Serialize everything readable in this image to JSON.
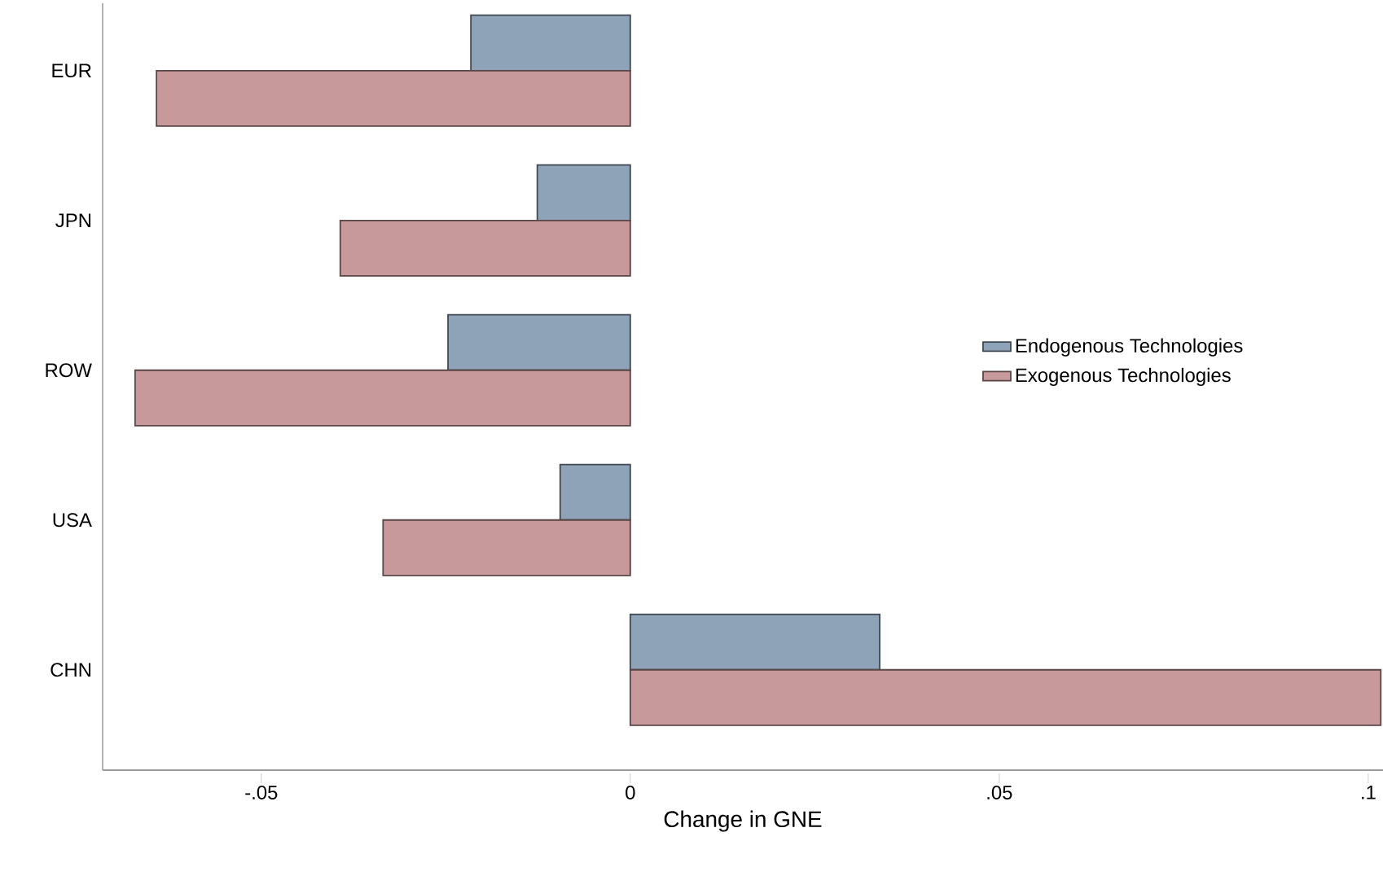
{
  "chart_data": {
    "type": "bar",
    "orientation": "horizontal",
    "xlabel": "Change in GNE",
    "categories": [
      "EUR",
      "JPN",
      "ROW",
      "USA",
      "CHN"
    ],
    "series": [
      {
        "name": "Endogenous Technologies",
        "color": "#8ea3b8",
        "values": [
          -0.0216,
          -0.0126,
          -0.0247,
          -0.0095,
          0.0338
        ]
      },
      {
        "name": "Exogenous Technologies",
        "color": "#c8999b",
        "values": [
          -0.0642,
          -0.0393,
          -0.0671,
          -0.0335,
          0.1017
        ]
      }
    ],
    "xlim": [
      -0.0715,
      0.102
    ],
    "xticks": [
      {
        "value": -0.05,
        "label": "-.05"
      },
      0,
      {
        "value": 0.05,
        "label": ".05"
      },
      {
        "value": 0.1,
        "label": ".1"
      }
    ],
    "legend": "right",
    "grid": false
  }
}
